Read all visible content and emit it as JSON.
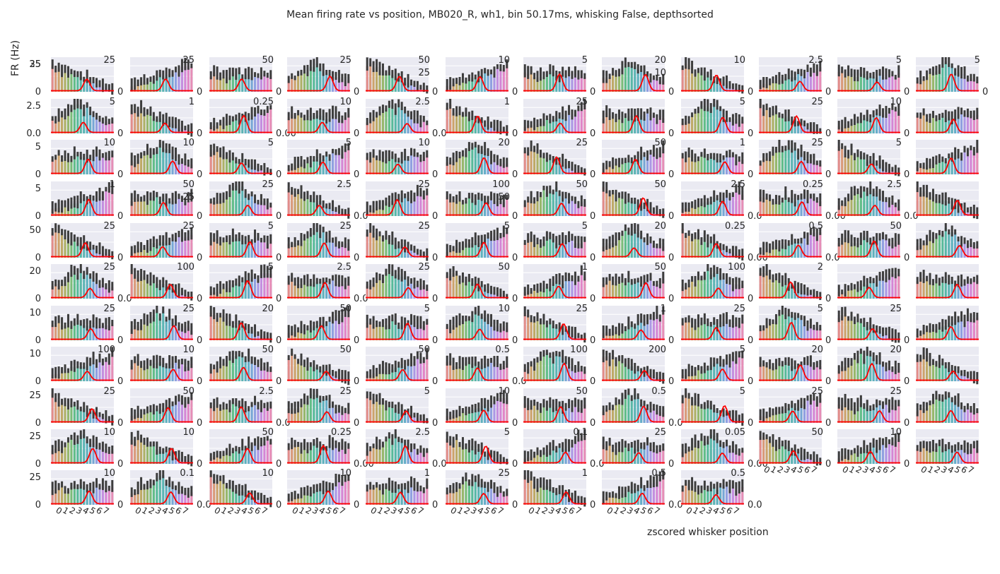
{
  "figure": {
    "title": "Mean firing rate vs position, MB020_R, wh1, bin 50.17ms, whisking False, depthsorted",
    "ylabel": "FR (Hz)",
    "xlabel": "zscored whisker position"
  },
  "colors": {
    "background": "#eaeaf2",
    "grid": "#ffffff",
    "curve": "#ff0000",
    "errorbar": "#3d3d3d",
    "text": "#262626",
    "bars": [
      "#e1837e",
      "#d7906a",
      "#c99a5c",
      "#b9a257",
      "#a6aa57",
      "#8eb15d",
      "#6fb76a",
      "#52b87c",
      "#47b58f",
      "#48b19f",
      "#4baeac",
      "#4fabb7",
      "#57a6c3",
      "#6a9fd1",
      "#8698de",
      "#a48ee2",
      "#bf84dd",
      "#d27bd1",
      "#e07ac2",
      "#e684b0"
    ]
  },
  "chart_data": {
    "type": "bar",
    "description_of_layout": "grid of 11 rows x 12 columns of small bar panels (128 panels)",
    "x_tick_labels": [
      "0",
      "1",
      "2",
      "3",
      "4",
      "5",
      "6",
      "7"
    ],
    "panels": [
      {
        "left": "0",
        "left_top": "25",
        "left_max": 35,
        "right": null,
        "shape": "decay",
        "curve_peak": 6
      },
      {
        "left": null,
        "right_top": "25",
        "right_max": 30,
        "right_mid": "",
        "shape": "decay",
        "curve_peak": 6
      },
      {
        "left": null,
        "right_top": "50",
        "right_max": 55,
        "shape": "bump",
        "curve_peak": 12
      },
      {
        "left": null,
        "right_top": "25",
        "right_max": 30,
        "shape": "decay",
        "curve_peak": 12
      },
      {
        "left": null,
        "right_top": "50",
        "right_max": 50,
        "right_mid": "25",
        "shape": "flat",
        "curve_peak": 10
      },
      {
        "left": null,
        "right_top": "10",
        "right_max": 14,
        "shape": "decay",
        "curve_peak": 10
      },
      {
        "left": null,
        "right_top": "5",
        "right_max": 7,
        "shape": "bump",
        "curve_peak": 8
      },
      {
        "left": null,
        "right_top": "20",
        "right_max": 22,
        "right_mid": "10",
        "shape": "flat",
        "curve_peak": 6
      },
      {
        "left": null,
        "right_top": "10",
        "right_max": 14,
        "shape": "decay",
        "curve_peak": 10
      },
      {
        "left": null,
        "right_top": "2.5",
        "right_max": 3,
        "shape": "rise",
        "curve_peak": 12
      },
      {
        "left": null,
        "right_top": "5",
        "right_max": 8,
        "shape": "bump",
        "curve_peak": 10
      },
      {
        "left": null,
        "right_top": "5",
        "right_max": 8,
        "shape": "rise",
        "curve_peak": 10
      }
    ],
    "row_left_labels": [
      [
        "35",
        "25",
        "0"
      ],
      [
        "2.5",
        "0.0"
      ],
      [
        "5",
        "0"
      ],
      [
        "5",
        "0"
      ],
      [
        "50",
        "0"
      ],
      [
        "20",
        "0"
      ],
      [
        "10",
        "0"
      ],
      [
        "10",
        "0"
      ],
      [
        "25",
        "0"
      ],
      [
        "25",
        "0"
      ],
      [
        "25",
        "0"
      ]
    ],
    "right_labels_grid": [
      [
        [
          "25",
          "0"
        ],
        [
          "25",
          "0"
        ],
        [
          "50",
          "0"
        ],
        [
          "25",
          "0"
        ],
        [
          "50",
          "25",
          "0"
        ],
        [
          "10",
          "0"
        ],
        [
          "5",
          "0"
        ],
        [
          "20",
          "10",
          "0"
        ],
        [
          "10",
          "0"
        ],
        [
          "2.5",
          "0"
        ],
        [
          "5",
          "0"
        ],
        [
          "5",
          "0"
        ]
      ],
      [
        [
          "5",
          "0"
        ],
        [
          "1",
          "0"
        ],
        [
          "0.25",
          "0.00"
        ],
        [
          "10",
          "0"
        ],
        [
          "2.5",
          "0.0"
        ],
        [
          "1",
          "0"
        ],
        [
          "25",
          "0"
        ],
        [
          "",
          "0"
        ],
        [
          "5",
          "0"
        ],
        [
          "25",
          "0"
        ],
        [
          "10",
          "0"
        ],
        [
          "",
          ""
        ]
      ],
      [
        [
          "10",
          "0"
        ],
        [
          "10",
          "0"
        ],
        [
          "5",
          "0"
        ],
        [
          "5",
          "0"
        ],
        [
          "10",
          "0"
        ],
        [
          "20",
          "0"
        ],
        [
          "25",
          "0"
        ],
        [
          "50",
          "0"
        ],
        [
          "1",
          "0"
        ],
        [
          "25",
          "0"
        ],
        [
          "5",
          "0"
        ],
        [
          "",
          ""
        ]
      ],
      [
        [
          "1",
          "0"
        ],
        [
          "50",
          "25",
          "0"
        ],
        [
          "25",
          "0"
        ],
        [
          "2.5",
          "0.0"
        ],
        [
          "25",
          "0"
        ],
        [
          "100",
          "50",
          "0"
        ],
        [
          "50",
          "0"
        ],
        [
          "50",
          "0"
        ],
        [
          "2.5",
          "0.0"
        ],
        [
          "0.25",
          "0.00"
        ],
        [
          "2.5",
          "0.0"
        ],
        [
          "",
          ""
        ]
      ],
      [
        [
          "25",
          "0"
        ],
        [
          "25",
          "0"
        ],
        [
          "5",
          "0"
        ],
        [
          "25",
          "0"
        ],
        [
          "25",
          "0"
        ],
        [
          "5",
          "0"
        ],
        [
          "5",
          "0"
        ],
        [
          "20",
          "0"
        ],
        [
          "0.25",
          "0.00"
        ],
        [
          "0.5",
          "0.0"
        ],
        [
          "50",
          "0"
        ],
        [
          "",
          ""
        ]
      ],
      [
        [
          "25",
          "0.0"
        ],
        [
          "100",
          "0"
        ],
        [
          "5",
          "0"
        ],
        [
          "2.5",
          "0.0"
        ],
        [
          "25",
          "0"
        ],
        [
          "50",
          "0"
        ],
        [
          "1",
          "0"
        ],
        [
          "50",
          "0"
        ],
        [
          "100",
          "0"
        ],
        [
          "2",
          "0"
        ],
        [
          "",
          ""
        ],
        [
          "",
          ""
        ]
      ],
      [
        [
          "25",
          "0"
        ],
        [
          "25",
          "0"
        ],
        [
          "20",
          "0"
        ],
        [
          "50",
          "0"
        ],
        [
          "5",
          "0"
        ],
        [
          "10",
          "0"
        ],
        [
          "25",
          "0"
        ],
        [
          "1",
          "0"
        ],
        [
          "25",
          "0"
        ],
        [
          "5",
          "0"
        ],
        [
          "25",
          "0"
        ],
        [
          "",
          ""
        ]
      ],
      [
        [
          "100",
          "0"
        ],
        [
          "10",
          "0"
        ],
        [
          "50",
          "0"
        ],
        [
          "50",
          "0"
        ],
        [
          "50",
          "0"
        ],
        [
          "0.5",
          "0.0"
        ],
        [
          "100",
          "0"
        ],
        [
          "200",
          "0"
        ],
        [
          "5",
          "0"
        ],
        [
          "20",
          "0"
        ],
        [
          "20",
          "0"
        ],
        [
          "",
          ""
        ]
      ],
      [
        [
          "25",
          "0"
        ],
        [
          "50",
          "0"
        ],
        [
          "2.5",
          "0.0"
        ],
        [
          "25",
          "0"
        ],
        [
          "5",
          "0"
        ],
        [
          "10",
          "0"
        ],
        [
          "50",
          "0"
        ],
        [
          "0.5",
          "0.0"
        ],
        [
          "5",
          "0"
        ],
        [
          "25",
          "0"
        ],
        [
          "25",
          "0"
        ],
        [
          "",
          ""
        ]
      ],
      [
        [
          "10",
          "0"
        ],
        [
          "10",
          "0"
        ],
        [
          "50",
          "0"
        ],
        [
          "0.25",
          "0.00"
        ],
        [
          "2.5",
          "0.0"
        ],
        [
          "5",
          "0"
        ],
        [
          "0.1",
          "0.0"
        ],
        [
          "25",
          "0"
        ],
        [
          "0.05",
          "0.00"
        ],
        [
          "50",
          "0"
        ],
        [
          "10",
          "0"
        ],
        [
          "",
          ""
        ]
      ],
      [
        [
          "10",
          "0"
        ],
        [
          "0.1",
          "0.0"
        ],
        [
          "10",
          "0"
        ],
        [
          "10",
          "0"
        ],
        [
          "1",
          "0"
        ],
        [
          "25",
          "0"
        ],
        [
          "1",
          "0"
        ],
        [
          "0.5",
          "0.0"
        ],
        [
          "0.5",
          "0.0"
        ],
        null,
        null,
        null
      ]
    ]
  }
}
